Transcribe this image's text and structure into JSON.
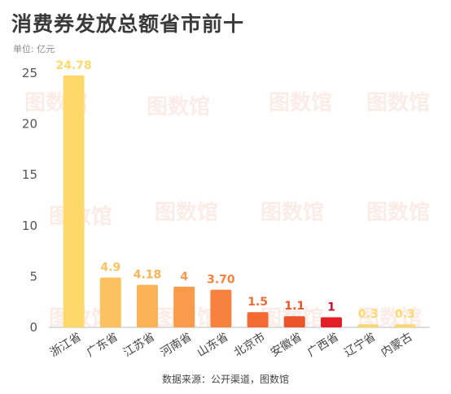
{
  "title": "消费券发放总额省市前十",
  "unit_label": "单位: 亿元",
  "source": "数据来源：公开渠道，图数馆",
  "watermark_text": "图数馆",
  "chart_data": {
    "type": "bar",
    "title": "消费券发放总额省市前十",
    "xlabel": "",
    "ylabel": "",
    "ylim": [
      0,
      25
    ],
    "yticks": [
      0,
      5,
      10,
      15,
      20,
      25
    ],
    "grid": false,
    "legend": "none",
    "categories": [
      "浙江省",
      "广东省",
      "江苏省",
      "河南省",
      "山东省",
      "北京市",
      "安徽省",
      "广西省",
      "辽宁省",
      "内蒙古"
    ],
    "values": [
      24.78,
      4.9,
      4.18,
      4,
      3.7,
      1.5,
      1.1,
      1,
      0.3,
      0.3
    ],
    "value_labels": [
      "24.78",
      "4.9",
      "4.18",
      "4",
      "3.70",
      "1.5",
      "1.1",
      "1",
      "0.3",
      "0.3"
    ],
    "bar_colors": [
      "#fdd96b",
      "#fcc25f",
      "#fbb155",
      "#f99b4a",
      "#f7823f",
      "#f26a34",
      "#ec5429",
      "#e31f26",
      "#fdd96b",
      "#fdd96b"
    ],
    "label_colors": [
      "#fdd96b",
      "#fcc25f",
      "#fbb155",
      "#f99b4a",
      "#f7823f",
      "#f26a34",
      "#ec5429",
      "#c8102e",
      "#fdd96b",
      "#fdd96b"
    ]
  }
}
